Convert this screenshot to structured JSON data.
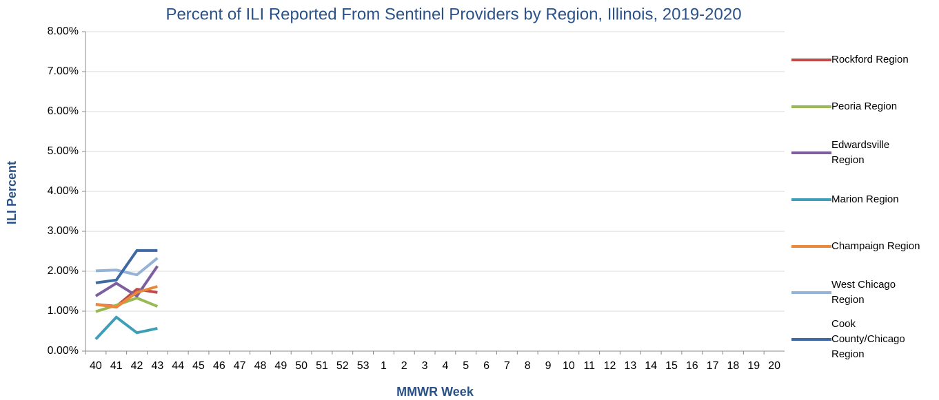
{
  "chart_data": {
    "type": "line",
    "title": "Percent of ILI Reported From Sentinel Providers by Region, Illinois, 2019-2020",
    "x_label": "MMWR Week",
    "y_label": "ILI Percent",
    "categories": [
      "40",
      "41",
      "42",
      "43",
      "44",
      "45",
      "46",
      "47",
      "48",
      "49",
      "50",
      "51",
      "52",
      "53",
      "1",
      "2",
      "3",
      "4",
      "5",
      "6",
      "7",
      "8",
      "9",
      "10",
      "11",
      "12",
      "13",
      "14",
      "15",
      "16",
      "17",
      "18",
      "19",
      "20"
    ],
    "ylim": [
      0,
      8
    ],
    "yticks": [
      {
        "value": 0,
        "label": "0.00%"
      },
      {
        "value": 1,
        "label": "1.00%"
      },
      {
        "value": 2,
        "label": "2.00%"
      },
      {
        "value": 3,
        "label": "3.00%"
      },
      {
        "value": 4,
        "label": "4.00%"
      },
      {
        "value": 5,
        "label": "5.00%"
      },
      {
        "value": 6,
        "label": "6.00%"
      },
      {
        "value": 7,
        "label": "7.00%"
      },
      {
        "value": 8,
        "label": "8.00%"
      }
    ],
    "grid": true,
    "series": [
      {
        "name": "Rockford Region",
        "color": "#be4b48",
        "values": [
          1.17,
          1.12,
          1.55,
          1.47,
          null,
          null,
          null,
          null,
          null,
          null,
          null,
          null,
          null,
          null,
          null,
          null,
          null,
          null,
          null,
          null,
          null,
          null,
          null,
          null,
          null,
          null,
          null,
          null,
          null,
          null,
          null,
          null,
          null,
          null
        ]
      },
      {
        "name": "Peoria Region",
        "color": "#98b954",
        "values": [
          0.99,
          1.15,
          1.33,
          1.12,
          null,
          null,
          null,
          null,
          null,
          null,
          null,
          null,
          null,
          null,
          null,
          null,
          null,
          null,
          null,
          null,
          null,
          null,
          null,
          null,
          null,
          null,
          null,
          null,
          null,
          null,
          null,
          null,
          null,
          null
        ]
      },
      {
        "name": "Edwardsville Region",
        "color": "#7d5fa0",
        "values": [
          1.38,
          1.7,
          1.38,
          2.13,
          null,
          null,
          null,
          null,
          null,
          null,
          null,
          null,
          null,
          null,
          null,
          null,
          null,
          null,
          null,
          null,
          null,
          null,
          null,
          null,
          null,
          null,
          null,
          null,
          null,
          null,
          null,
          null,
          null,
          null
        ]
      },
      {
        "name": "Marion Region",
        "color": "#3f9eb7",
        "values": [
          0.3,
          0.85,
          0.46,
          0.57,
          null,
          null,
          null,
          null,
          null,
          null,
          null,
          null,
          null,
          null,
          null,
          null,
          null,
          null,
          null,
          null,
          null,
          null,
          null,
          null,
          null,
          null,
          null,
          null,
          null,
          null,
          null,
          null,
          null,
          null
        ]
      },
      {
        "name": "Champaign Region",
        "color": "#e8893b",
        "values": [
          1.17,
          1.1,
          1.47,
          1.62,
          null,
          null,
          null,
          null,
          null,
          null,
          null,
          null,
          null,
          null,
          null,
          null,
          null,
          null,
          null,
          null,
          null,
          null,
          null,
          null,
          null,
          null,
          null,
          null,
          null,
          null,
          null,
          null,
          null,
          null
        ]
      },
      {
        "name": "West Chicago Region",
        "color": "#95b3d7",
        "values": [
          2.01,
          2.03,
          1.91,
          2.33,
          null,
          null,
          null,
          null,
          null,
          null,
          null,
          null,
          null,
          null,
          null,
          null,
          null,
          null,
          null,
          null,
          null,
          null,
          null,
          null,
          null,
          null,
          null,
          null,
          null,
          null,
          null,
          null,
          null,
          null
        ]
      },
      {
        "name": "Cook County/Chicago Region",
        "color": "#3e69a3",
        "values": [
          1.71,
          1.78,
          2.52,
          2.52,
          null,
          null,
          null,
          null,
          null,
          null,
          null,
          null,
          null,
          null,
          null,
          null,
          null,
          null,
          null,
          null,
          null,
          null,
          null,
          null,
          null,
          null,
          null,
          null,
          null,
          null,
          null,
          null,
          null,
          null
        ]
      }
    ]
  }
}
